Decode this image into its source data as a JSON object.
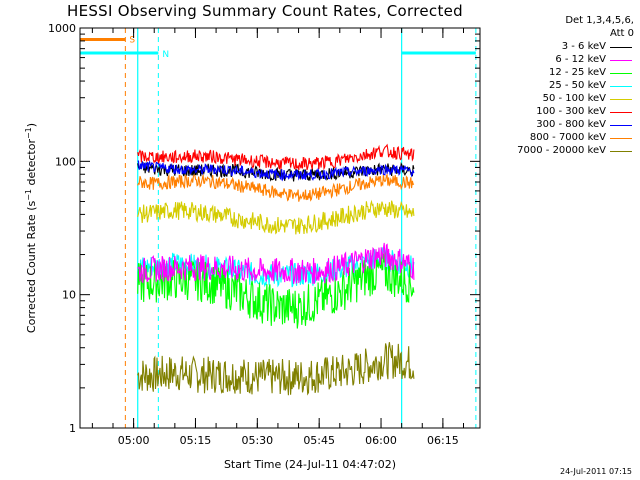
{
  "title": "HESSI Observing Summary Count Rates, Corrected",
  "legend": {
    "header_line1": "Det 1,3,4,5,6,",
    "header_line2": "Att 0"
  },
  "footer": "24-Jul-2011 07:15",
  "chart_data": {
    "type": "line",
    "title": "HESSI Observing Summary Count Rates, Corrected",
    "xlabel": "Start Time (24-Jul-11 04:47:02)",
    "ylabel": "Corrected Count Rate (s⁻¹ detector⁻¹)",
    "y_scale": "log",
    "ylim": [
      1,
      1000
    ],
    "xlim": [
      "04:47",
      "06:24"
    ],
    "x_ticks": [
      "05:00",
      "05:15",
      "05:30",
      "05:45",
      "06:00",
      "06:15"
    ],
    "y_ticks": [
      "1",
      "10",
      "100",
      "1000"
    ],
    "x": [
      "05:01",
      "05:05",
      "05:10",
      "05:15",
      "05:20",
      "05:25",
      "05:30",
      "05:35",
      "05:40",
      "05:45",
      "05:50",
      "05:55",
      "06:00",
      "06:05",
      "06:08"
    ],
    "series": [
      {
        "name": "3 - 6 keV",
        "color": "#000000",
        "values": [
          90,
          88,
          86,
          85,
          86,
          85,
          82,
          80,
          79,
          80,
          82,
          84,
          87,
          86,
          85
        ]
      },
      {
        "name": "6 - 12 keV",
        "color": "#ff00ff",
        "values": [
          15,
          15.5,
          16,
          16,
          16,
          15.5,
          15,
          15,
          15,
          15,
          16,
          18,
          20,
          18,
          16
        ]
      },
      {
        "name": "12 - 25 keV",
        "color": "#00ff00",
        "values": [
          12,
          12.5,
          13,
          13,
          12,
          10.5,
          9,
          8,
          8,
          9,
          10.5,
          13,
          15,
          13,
          12
        ]
      },
      {
        "name": "25 - 50 keV",
        "color": "#00ffff",
        "values": [
          16,
          16.5,
          17,
          16.5,
          16,
          15,
          14,
          14,
          14,
          14.5,
          15.5,
          17,
          19,
          17,
          16
        ]
      },
      {
        "name": "50 - 100 keV",
        "color": "#d4cc00",
        "values": [
          40,
          41,
          43,
          42,
          40,
          37,
          35,
          33,
          33,
          35,
          38,
          42,
          45,
          42,
          40
        ]
      },
      {
        "name": "100 - 300 keV",
        "color": "#ff0000",
        "values": [
          108,
          108,
          107,
          110,
          108,
          103,
          100,
          97,
          95,
          97,
          102,
          110,
          120,
          115,
          110
        ]
      },
      {
        "name": "300 - 800 keV",
        "color": "#0000ff",
        "values": [
          93,
          90,
          88,
          86,
          88,
          85,
          82,
          80,
          79,
          80,
          82,
          84,
          87,
          86,
          85
        ]
      },
      {
        "name": "800 - 7000 keV",
        "color": "#ff7f00",
        "values": [
          70,
          68,
          70,
          72,
          70,
          66,
          62,
          58,
          55,
          57,
          62,
          67,
          72,
          70,
          68
        ]
      },
      {
        "name": "7000 - 20000 keV",
        "color": "#808000",
        "values": [
          2.5,
          2.5,
          2.6,
          2.5,
          2.5,
          2.5,
          2.4,
          2.4,
          2.4,
          2.5,
          2.6,
          2.8,
          3.2,
          3.2,
          3.0
        ]
      }
    ],
    "intervals": [
      {
        "label": "S",
        "color": "#ff7f00",
        "start": "04:47",
        "end": "04:58"
      },
      {
        "label": "N",
        "color": "#00ffff",
        "start": "04:47",
        "end": "05:06"
      },
      {
        "label": "N",
        "color": "#00ffff",
        "start": "06:05",
        "end": "06:23"
      }
    ],
    "shaded_bounds": [
      "05:01",
      "06:05"
    ],
    "legend_position": "right"
  }
}
